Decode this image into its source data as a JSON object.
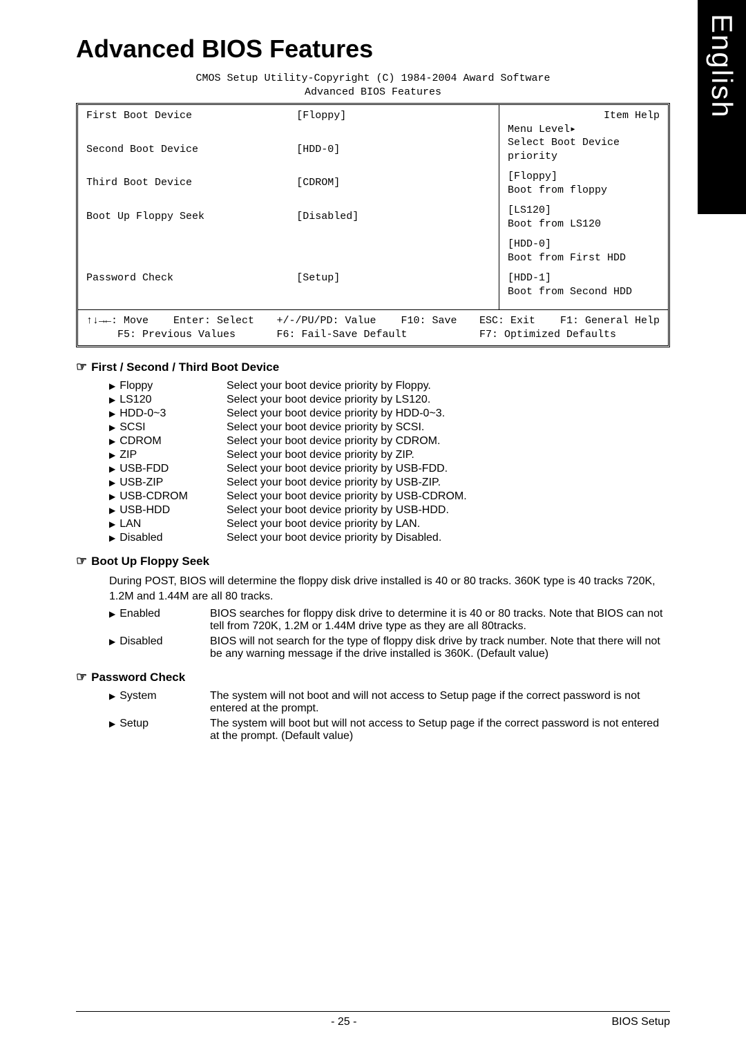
{
  "side_tab": "English",
  "title": "Advanced BIOS Features",
  "bios": {
    "header_line1": "CMOS Setup Utility-Copyright (C) 1984-2004 Award Software",
    "header_line2": "Advanced BIOS Features",
    "settings": [
      {
        "label": "First Boot Device",
        "value": "[Floppy]"
      },
      {
        "label": "Second Boot Device",
        "value": "[HDD-0]"
      },
      {
        "label": "Third Boot Device",
        "value": "[CDROM]"
      },
      {
        "label": "Boot Up Floppy Seek",
        "value": "[Disabled]"
      }
    ],
    "settings2": [
      {
        "label": "Password Check",
        "value": "[Setup]"
      }
    ],
    "help": {
      "title": "Item Help",
      "menu_level": "Menu Level▸",
      "desc1": "Select Boot Device",
      "desc2": "priority",
      "opts": [
        {
          "k": "[Floppy]",
          "d": "Boot from floppy"
        },
        {
          "k": "[LS120]",
          "d": "Boot from LS120"
        },
        {
          "k": "[HDD-0]",
          "d": "Boot from First HDD"
        },
        {
          "k": "[HDD-1]",
          "d": "Boot from Second HDD"
        }
      ]
    },
    "footer": {
      "c1a": "↑↓→←: Move    Enter: Select",
      "c1b": "     F5: Previous Values",
      "c2a": "+/-/PU/PD: Value    F10: Save",
      "c2b": "F6: Fail-Save Default",
      "c3a": "ESC: Exit    F1: General Help",
      "c3b": "F7: Optimized Defaults"
    }
  },
  "section1": {
    "heading": "First / Second / Third Boot Device",
    "rows": [
      {
        "k": "Floppy",
        "v": "Select your boot device priority by Floppy."
      },
      {
        "k": "LS120",
        "v": "Select your boot device priority by LS120."
      },
      {
        "k": "HDD-0~3",
        "v": "Select your boot device priority by HDD-0~3."
      },
      {
        "k": "SCSI",
        "v": "Select your boot device priority by SCSI."
      },
      {
        "k": "CDROM",
        "v": "Select your boot device priority by CDROM."
      },
      {
        "k": "ZIP",
        "v": "Select your boot device priority by ZIP."
      },
      {
        "k": "USB-FDD",
        "v": "Select your boot device priority by USB-FDD."
      },
      {
        "k": "USB-ZIP",
        "v": "Select your boot device priority by USB-ZIP."
      },
      {
        "k": "USB-CDROM",
        "v": "Select your boot device priority by USB-CDROM."
      },
      {
        "k": "USB-HDD",
        "v": "Select your boot device priority by USB-HDD."
      },
      {
        "k": "LAN",
        "v": "Select your boot device priority by LAN."
      },
      {
        "k": "Disabled",
        "v": "Select your boot device priority by Disabled."
      }
    ]
  },
  "section2": {
    "heading": "Boot Up Floppy Seek",
    "para": "During POST, BIOS will determine the floppy disk drive installed is 40 or 80 tracks. 360K type is 40 tracks 720K, 1.2M and 1.44M are all 80 tracks.",
    "rows": [
      {
        "k": "Enabled",
        "v": "BIOS searches for floppy disk drive to determine it is 40 or 80 tracks. Note that BIOS can not tell from 720K, 1.2M or 1.44M drive type as they are all 80tracks."
      },
      {
        "k": "Disabled",
        "v": "BIOS will not search for the type of floppy disk drive by track number. Note that there will not be any warning message if the drive installed is 360K. (Default value)"
      }
    ]
  },
  "section3": {
    "heading": "Password Check",
    "rows": [
      {
        "k": "System",
        "v": "The system will not boot and will not access to Setup page if the correct password is not entered at the prompt."
      },
      {
        "k": "Setup",
        "v": "The system will boot but will not access to Setup page if the correct password is not entered at the prompt. (Default value)"
      }
    ]
  },
  "footer": {
    "page": "- 25 -",
    "section": "BIOS Setup"
  }
}
